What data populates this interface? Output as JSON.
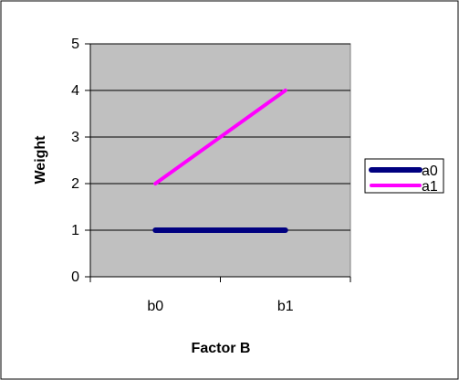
{
  "chart_data": {
    "type": "line",
    "title": "",
    "xlabel": "Factor B",
    "ylabel": "Weight",
    "categories": [
      "b0",
      "b1"
    ],
    "ylim": [
      0,
      5
    ],
    "yticks": [
      0,
      1,
      2,
      3,
      4,
      5
    ],
    "grid": "horizontal",
    "legend_position": "right",
    "plot_background": "#c0c0c0",
    "series": [
      {
        "name": "a0",
        "values": [
          1,
          1
        ],
        "color": "#000080"
      },
      {
        "name": "a1",
        "values": [
          2,
          4
        ],
        "color": "#ff00ff"
      }
    ]
  }
}
